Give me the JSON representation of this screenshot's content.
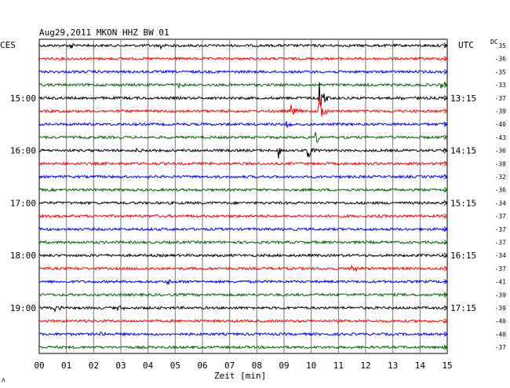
{
  "chart_data": {
    "type": "line",
    "title": "Aug29,2011   MKON HHZ BW 01",
    "left_axis_label": "CES",
    "right_axis_label": "UTC",
    "dc_label": "DC",
    "xlabel": "Zeit [min]",
    "x_ticks": [
      "00",
      "01",
      "02",
      "03",
      "04",
      "05",
      "06",
      "07",
      "08",
      "09",
      "10",
      "11",
      "12",
      "13",
      "14",
      "15"
    ],
    "xlim": [
      0,
      15
    ],
    "left_time_labels": [
      {
        "row": 4,
        "text": "15:00"
      },
      {
        "row": 8,
        "text": "16:00"
      },
      {
        "row": 12,
        "text": "17:00"
      },
      {
        "row": 16,
        "text": "18:00"
      },
      {
        "row": 20,
        "text": "19:00"
      }
    ],
    "right_time_labels": [
      {
        "row": 4,
        "text": "13:15"
      },
      {
        "row": 8,
        "text": "14:15"
      },
      {
        "row": 12,
        "text": "15:15"
      },
      {
        "row": 16,
        "text": "16:15"
      },
      {
        "row": 20,
        "text": "17:15"
      }
    ],
    "dc_values": [
      "35",
      "-36",
      "-35",
      "-33",
      "-37",
      "-39",
      "-40",
      "-43",
      "-36",
      "-38",
      "-32",
      "-36",
      "-34",
      "-37",
      "-37",
      "-37",
      "-34",
      "-37",
      "-41",
      "-39",
      "-39",
      "-40",
      "-40",
      "-37"
    ],
    "trace_colors": [
      "#000000",
      "#ff0000",
      "#0000ff",
      "#006400"
    ],
    "traces": 24,
    "events": [
      {
        "row": 0,
        "minute": 1.2,
        "amp": 5
      },
      {
        "row": 0,
        "minute": 4.5,
        "amp": 4
      },
      {
        "row": 3,
        "minute": 5.1,
        "amp": 3
      },
      {
        "row": 3,
        "minute": 14.8,
        "amp": 5
      },
      {
        "row": 4,
        "minute": 10.3,
        "amp": 30
      },
      {
        "row": 4,
        "minute": 13.3,
        "amp": 4
      },
      {
        "row": 5,
        "minute": 9.3,
        "amp": 9
      },
      {
        "row": 5,
        "minute": 10.3,
        "amp": 22
      },
      {
        "row": 6,
        "minute": 9.1,
        "amp": 6
      },
      {
        "row": 7,
        "minute": 10.2,
        "amp": 8
      },
      {
        "row": 8,
        "minute": 8.8,
        "amp": 12
      },
      {
        "row": 8,
        "minute": 9.9,
        "amp": 10
      },
      {
        "row": 8,
        "minute": 3.6,
        "amp": 3
      },
      {
        "row": 17,
        "minute": 11.5,
        "amp": 7
      },
      {
        "row": 18,
        "minute": 4.7,
        "amp": 5
      },
      {
        "row": 20,
        "minute": 0.6,
        "amp": 4
      },
      {
        "row": 20,
        "minute": 2.9,
        "amp": 5
      },
      {
        "row": 22,
        "minute": 2.3,
        "amp": 3
      }
    ]
  },
  "corner_mark": "ʌ"
}
